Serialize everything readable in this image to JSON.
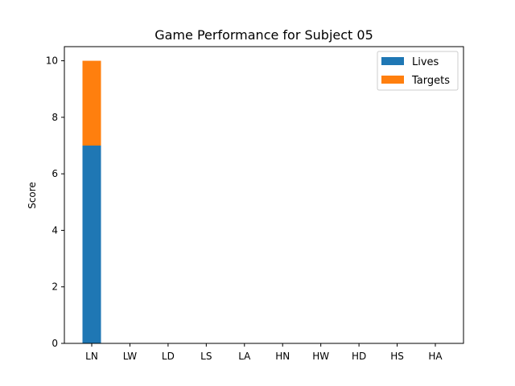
{
  "chart_data": {
    "type": "bar",
    "stacked": true,
    "title": "Game Performance for Subject 05",
    "xlabel": "",
    "ylabel": "Score",
    "categories": [
      "LN",
      "LW",
      "LD",
      "LS",
      "LA",
      "HN",
      "HW",
      "HD",
      "HS",
      "HA"
    ],
    "series": [
      {
        "name": "Lives",
        "color": "#1f77b4",
        "values": [
          7,
          0,
          0,
          0,
          0,
          0,
          0,
          0,
          0,
          0
        ]
      },
      {
        "name": "Targets",
        "color": "#ff7f0e",
        "values": [
          3,
          0,
          0,
          0,
          0,
          0,
          0,
          0,
          0,
          0
        ]
      }
    ],
    "ylim": [
      0,
      10.5
    ],
    "yticks": [
      0,
      2,
      4,
      6,
      8,
      10
    ],
    "grid": false,
    "legend_position": "top-right"
  }
}
